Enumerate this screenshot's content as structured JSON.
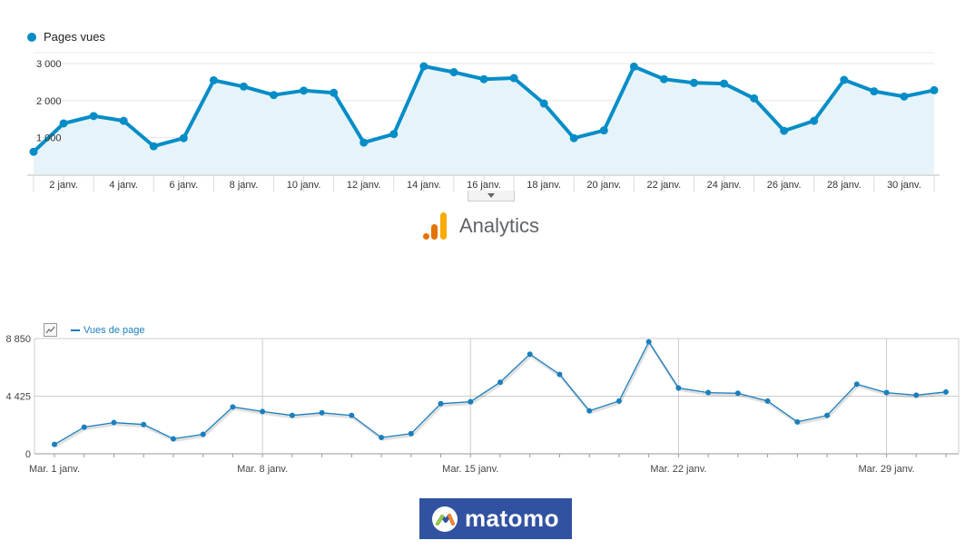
{
  "ga": {
    "legend_label": "Pages vues",
    "logo_text": "Analytics"
  },
  "matomo": {
    "legend_label": "Vues de page",
    "logo_text": "matomo"
  },
  "colors": {
    "ga_line": "#058dc7",
    "ga_fill": "#e6f4fa",
    "matomo_line": "#1a7fbd",
    "ga_orange": "#e37400",
    "ga_yellow": "#f9ab00",
    "matomo_bg": "#3152a0"
  },
  "chart_data": [
    {
      "type": "area",
      "series": [
        {
          "name": "Pages vues",
          "values": [
            610,
            1380,
            1580,
            1450,
            760,
            980,
            2550,
            2380,
            2150,
            2270,
            2210,
            860,
            1090,
            2930,
            2770,
            2580,
            2610,
            1920,
            980,
            1190,
            2920,
            2580,
            2480,
            2460,
            2060,
            1180,
            1450,
            2560,
            2250,
            2110,
            2280
          ]
        }
      ],
      "x": [
        1,
        2,
        3,
        4,
        5,
        6,
        7,
        8,
        9,
        10,
        11,
        12,
        13,
        14,
        15,
        16,
        17,
        18,
        19,
        20,
        21,
        22,
        23,
        24,
        25,
        26,
        27,
        28,
        29,
        30,
        31
      ],
      "x_tick_labels": [
        "2 janv.",
        "4 janv.",
        "6 janv.",
        "8 janv.",
        "10 janv.",
        "12 janv.",
        "14 janv.",
        "16 janv.",
        "18 janv.",
        "20 janv.",
        "22 janv.",
        "24 janv.",
        "26 janv.",
        "28 janv.",
        "30 janv."
      ],
      "x_tick_values": [
        2,
        4,
        6,
        8,
        10,
        12,
        14,
        16,
        18,
        20,
        22,
        24,
        26,
        28,
        30
      ],
      "y_tick_labels": [
        "1 000",
        "2 000",
        "3 000"
      ],
      "y_tick_values": [
        1000,
        2000,
        3000
      ],
      "ylim": [
        0,
        3300
      ],
      "legend": "top-left",
      "grid": true
    },
    {
      "type": "line",
      "series": [
        {
          "name": "Vues de page",
          "values": [
            720,
            2050,
            2400,
            2250,
            1150,
            1500,
            3600,
            3250,
            2950,
            3150,
            2950,
            1250,
            1550,
            3850,
            4000,
            5500,
            7650,
            6100,
            3300,
            4050,
            8600,
            5050,
            4700,
            4650,
            4050,
            2450,
            2950,
            5350,
            4700,
            4500,
            4750
          ]
        }
      ],
      "x": [
        1,
        2,
        3,
        4,
        5,
        6,
        7,
        8,
        9,
        10,
        11,
        12,
        13,
        14,
        15,
        16,
        17,
        18,
        19,
        20,
        21,
        22,
        23,
        24,
        25,
        26,
        27,
        28,
        29,
        30,
        31
      ],
      "x_tick_labels": [
        "Mar. 1 janv.",
        "Mar. 8 janv.",
        "Mar. 15 janv.",
        "Mar. 22 janv.",
        "Mar. 29 janv."
      ],
      "x_tick_values": [
        1,
        8,
        15,
        22,
        29
      ],
      "y_tick_labels": [
        "0",
        "4 425",
        "8 850"
      ],
      "y_tick_values": [
        0,
        4425,
        8850
      ],
      "ylim": [
        0,
        8850
      ],
      "legend": "top-left",
      "grid": true
    }
  ]
}
